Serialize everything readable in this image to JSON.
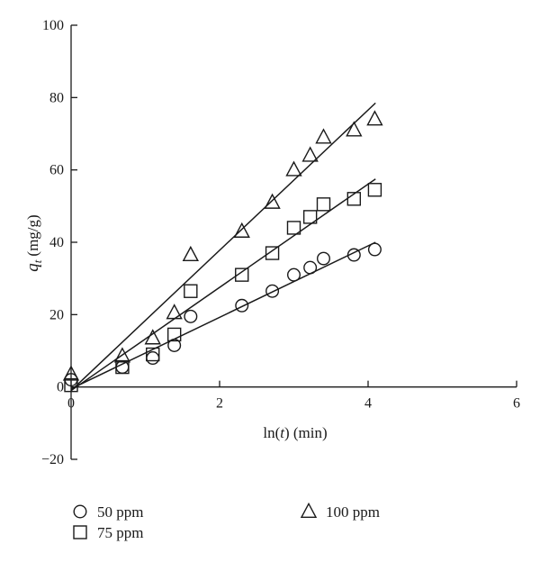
{
  "chart_data": {
    "type": "scatter",
    "title": "",
    "xlabel_func": "ln(",
    "xlabel_var": "t",
    "xlabel_rest": ") (min)",
    "ylabel_var": "q",
    "ylabel_sub": "t",
    "ylabel_unit": "(mg/g)",
    "xlim": [
      0,
      6
    ],
    "ylim": [
      -20,
      100
    ],
    "x_ticks": [
      0,
      2,
      4,
      6
    ],
    "y_ticks": [
      -20,
      0,
      20,
      40,
      60,
      80,
      100
    ],
    "grid": false,
    "legend_position": "bottom-left",
    "series": [
      {
        "name": "50 ppm",
        "marker": "circle",
        "x": [
          0,
          0.69,
          1.1,
          1.39,
          1.61,
          2.3,
          2.71,
          3.0,
          3.22,
          3.4,
          3.81,
          4.09
        ],
        "y": [
          2,
          5.5,
          8,
          11.5,
          19.5,
          22.5,
          26.5,
          31,
          33,
          35.5,
          36.5,
          38
        ],
        "fit": {
          "x0": 0,
          "y0": -0.5,
          "x1": 4.1,
          "y1": 40
        }
      },
      {
        "name": "75 ppm",
        "marker": "square",
        "x": [
          0,
          0.69,
          1.1,
          1.39,
          1.61,
          2.3,
          2.71,
          3.0,
          3.22,
          3.4,
          3.81,
          4.09
        ],
        "y": [
          0.5,
          5.5,
          9,
          14.5,
          26.5,
          31,
          37,
          44,
          47,
          50.5,
          52,
          54.5
        ],
        "fit": {
          "x0": 0,
          "y0": -1,
          "x1": 4.1,
          "y1": 57.5
        }
      },
      {
        "name": "100 ppm",
        "marker": "triangle",
        "x": [
          0,
          0.69,
          1.1,
          1.39,
          1.61,
          2.3,
          2.71,
          3.0,
          3.22,
          3.4,
          3.81,
          4.09
        ],
        "y": [
          3.5,
          8.5,
          13.5,
          20.5,
          36.5,
          43,
          51,
          60,
          64,
          69,
          71,
          74
        ],
        "fit": {
          "x0": 0,
          "y0": -1,
          "x1": 4.1,
          "y1": 78.5
        }
      }
    ]
  }
}
